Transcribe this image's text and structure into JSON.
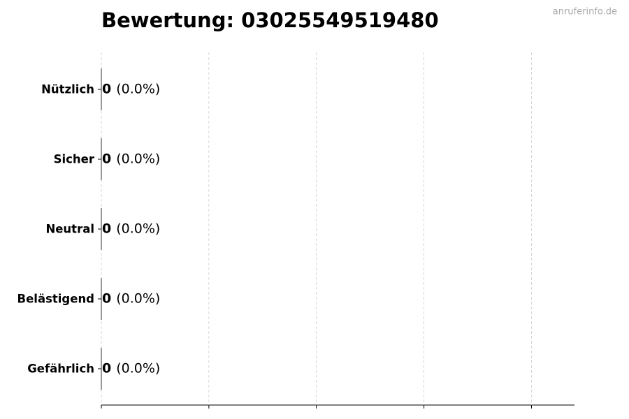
{
  "chart_data": {
    "type": "barh",
    "title": "Bewertung: 03025549519480",
    "watermark": "anruferinfo.de",
    "categories": [
      "Nützlich",
      "Sicher",
      "Neutral",
      "Belästigend",
      "Gefährlich"
    ],
    "values": [
      0,
      0,
      0,
      0,
      0
    ],
    "percent_labels": [
      "(0.0%)",
      "(0.0%)",
      "(0.0%)",
      "(0.0%)",
      "(0.0%)"
    ],
    "color": "#333333",
    "xlim": [
      0,
      1.1
    ],
    "xticks": [
      0,
      0.25,
      0.5,
      0.75,
      1
    ],
    "grid": true
  }
}
